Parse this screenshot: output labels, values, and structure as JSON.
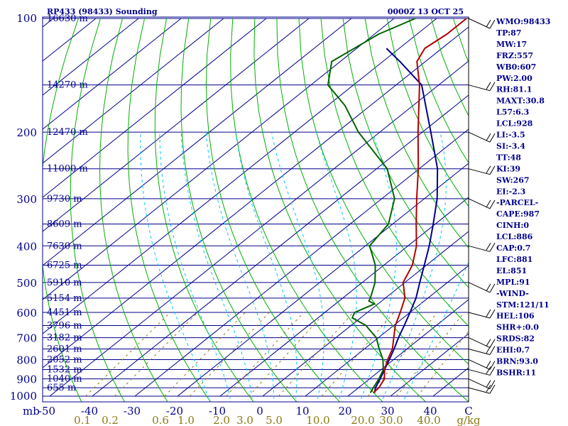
{
  "header": {
    "station": "RP433 (98433) Sounding",
    "time": "0000Z 13 OCT 25"
  },
  "chart_data": {
    "type": "skew-t log-p sounding",
    "pressure_axis": {
      "unit_label": "mb",
      "range_mb": [
        100,
        1000
      ],
      "ticks": [
        100,
        200,
        300,
        400,
        500,
        600,
        700,
        800,
        900,
        1000
      ]
    },
    "temperature_axis": {
      "unit_label": "C",
      "range_c": [
        -50,
        50
      ],
      "ticks": [
        -50,
        -40,
        -30,
        -20,
        -10,
        0,
        10,
        20,
        30,
        40
      ]
    },
    "mixing_ratio_axis": {
      "unit_label": "g/kg",
      "ticks": [
        "0.1",
        "0.2",
        "0.6",
        "1.0",
        "2.0",
        "3.0",
        "5.0",
        "10.0",
        "20.0",
        "30.0",
        "40.0"
      ]
    },
    "height_labels": [
      {
        "p": 100,
        "label": "16630 m"
      },
      {
        "p": 150,
        "label": "14270 m"
      },
      {
        "p": 200,
        "label": "12470 m"
      },
      {
        "p": 250,
        "label": "11000 m"
      },
      {
        "p": 300,
        "label": "9730 m"
      },
      {
        "p": 350,
        "label": "8609 m"
      },
      {
        "p": 400,
        "label": "7630 m"
      },
      {
        "p": 450,
        "label": "6725 m"
      },
      {
        "p": 500,
        "label": "5910 m"
      },
      {
        "p": 550,
        "label": "5154 m"
      },
      {
        "p": 600,
        "label": "4451 m"
      },
      {
        "p": 650,
        "label": "3796 m"
      },
      {
        "p": 700,
        "label": "3182 m"
      },
      {
        "p": 750,
        "label": "2601 m"
      },
      {
        "p": 800,
        "label": "2052 m"
      },
      {
        "p": 850,
        "label": "1532 m"
      },
      {
        "p": 900,
        "label": "1040 m"
      },
      {
        "p": 950,
        "label": "655 m"
      }
    ],
    "temperature_profile": [
      [
        980,
        25
      ],
      [
        950,
        24.8
      ],
      [
        900,
        23.5
      ],
      [
        850,
        20.8
      ],
      [
        800,
        18.6
      ],
      [
        750,
        16.6
      ],
      [
        700,
        13.6
      ],
      [
        650,
        10.4
      ],
      [
        600,
        7.7
      ],
      [
        550,
        4.6
      ],
      [
        500,
        -0.4
      ],
      [
        450,
        -3.3
      ],
      [
        400,
        -8
      ],
      [
        350,
        -14.5
      ],
      [
        300,
        -21.8
      ],
      [
        250,
        -30.2
      ],
      [
        200,
        -41
      ],
      [
        150,
        -54.5
      ],
      [
        130,
        -62
      ],
      [
        120,
        -64
      ],
      [
        110,
        -63
      ],
      [
        100,
        -63
      ]
    ],
    "dewpoint_profile": [
      [
        980,
        24.3
      ],
      [
        950,
        23.5
      ],
      [
        900,
        22.2
      ],
      [
        850,
        20.5
      ],
      [
        800,
        17.5
      ],
      [
        750,
        13.5
      ],
      [
        700,
        9.5
      ],
      [
        650,
        3.5
      ],
      [
        620,
        -2
      ],
      [
        600,
        -3
      ],
      [
        570,
        -0.8
      ],
      [
        560,
        -3
      ],
      [
        550,
        -3.5
      ],
      [
        500,
        -7
      ],
      [
        450,
        -12
      ],
      [
        400,
        -19
      ],
      [
        350,
        -21
      ],
      [
        300,
        -27
      ],
      [
        250,
        -37.5
      ],
      [
        200,
        -55
      ],
      [
        170,
        -66
      ],
      [
        150,
        -76
      ],
      [
        130,
        -82
      ],
      [
        110,
        -79
      ],
      [
        100,
        -75
      ]
    ],
    "parcel_profile": [
      [
        980,
        25.3
      ],
      [
        950,
        24
      ],
      [
        900,
        22.5
      ],
      [
        850,
        20.8
      ],
      [
        800,
        19
      ],
      [
        750,
        17
      ],
      [
        700,
        14.7
      ],
      [
        650,
        12.5
      ],
      [
        600,
        10
      ],
      [
        550,
        7.2
      ],
      [
        500,
        3.5
      ],
      [
        450,
        -0.5
      ],
      [
        400,
        -5
      ],
      [
        350,
        -10.5
      ],
      [
        300,
        -17
      ],
      [
        250,
        -25.7
      ],
      [
        200,
        -38
      ],
      [
        150,
        -54
      ],
      [
        130,
        -66
      ],
      [
        120,
        -73
      ]
    ],
    "wind_levels_mb": [
      100,
      150,
      200,
      250,
      300,
      400,
      500,
      600,
      700,
      750,
      800,
      850,
      900,
      950
    ],
    "line_colors": {
      "temperature": "#b00000",
      "dewpoint": "#006400",
      "parcel": "#00008b",
      "isobar": "#00008b",
      "isotherm": "#00008b",
      "dry_adiabat": "#00b000",
      "moist_adiabat": "#00c8ff",
      "mixing_ratio": "#8b7a14"
    }
  },
  "indices": [
    "WMO:98433",
    "TP:87",
    "MW:17",
    "FRZ:557",
    "WB0:607",
    "PW:2.00",
    "RH:81.1",
    "MAXT:30.8",
    "L57:6.3",
    "LCL:928",
    "LI:-3.5",
    "SI:-3.4",
    "TT:48",
    "KI:39",
    "SW:267",
    "EI:-2.3",
    "-PARCEL-",
    "CAPE:987",
    "CINH:0",
    "LCL:886",
    "CAP:0.7",
    "LFC:881",
    "EL:851",
    "MPL:91",
    "-WIND-",
    "STM:121/11",
    "HEL:106",
    "SHR+:0.0",
    "SRDS:82",
    "EHI:0.7",
    "BRN:93.0",
    "BSHR:11"
  ]
}
